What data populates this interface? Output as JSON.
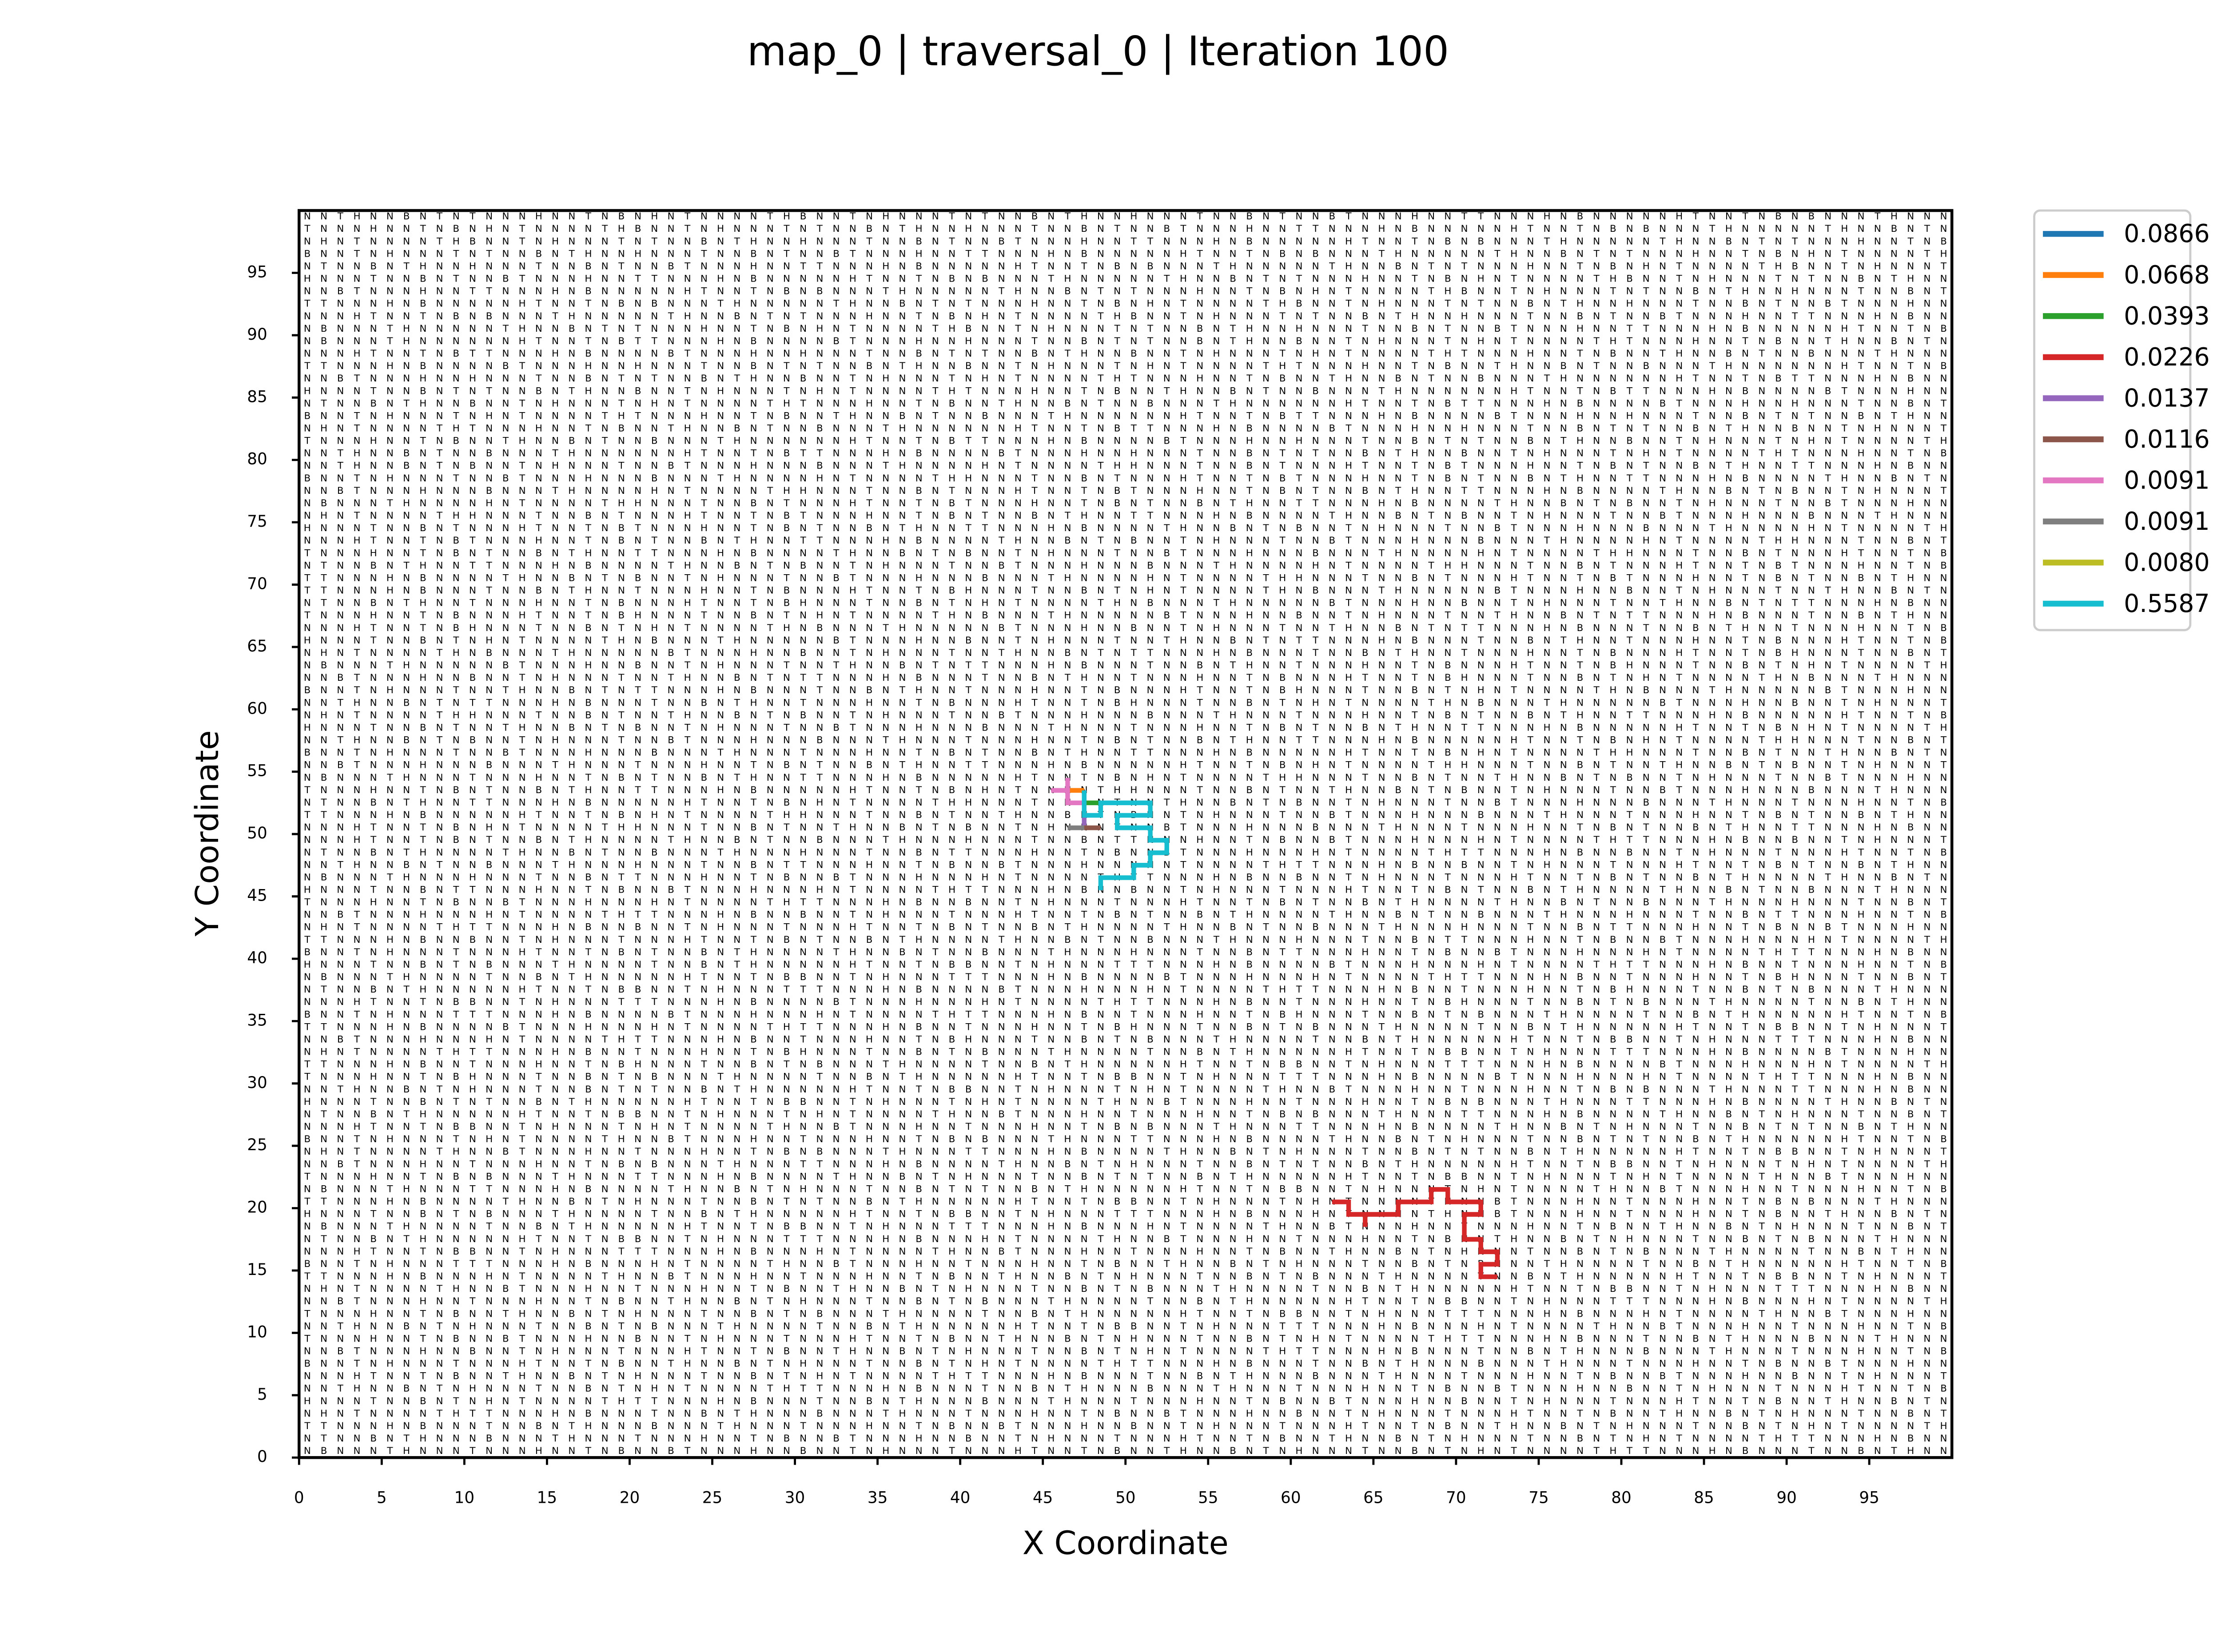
{
  "chart_data": {
    "type": "line",
    "title": "map_0 | traversal_0 | Iteration 100",
    "xlabel": "X Coordinate",
    "ylabel": "Y Coordinate",
    "xlim": [
      0,
      100
    ],
    "ylim": [
      0,
      100
    ],
    "xticks": [
      0,
      5,
      10,
      15,
      20,
      25,
      30,
      35,
      40,
      45,
      50,
      55,
      60,
      65,
      70,
      75,
      80,
      85,
      90,
      95
    ],
    "yticks": [
      0,
      5,
      10,
      15,
      20,
      25,
      30,
      35,
      40,
      45,
      50,
      55,
      60,
      65,
      70,
      75,
      80,
      85,
      90,
      95
    ],
    "legend": "outside-upper-right",
    "series": [
      {
        "name": "0.0866",
        "color": "#1f77b4",
        "x": [
          47.5,
          47.5
        ],
        "y": [
          53.5,
          52.5
        ]
      },
      {
        "name": "0.0668",
        "color": "#ff7f0e",
        "x": [
          46.5,
          47.5
        ],
        "y": [
          53.5,
          53.5
        ]
      },
      {
        "name": "0.0393",
        "color": "#2ca02c",
        "x": [
          47.5,
          48.5
        ],
        "y": [
          52.5,
          52.5
        ]
      },
      {
        "name": "0.0226",
        "color": "#d62728",
        "x": [
          62.5,
          63.5,
          63.5,
          64.5,
          64.5,
          64.5,
          65.5,
          66.5,
          66.5,
          67.5,
          68.5,
          68.5,
          69.5,
          69.5,
          70.5,
          71.5,
          71.5,
          70.5,
          70.5,
          70.5,
          71.5,
          71.5,
          72.5,
          72.5,
          71.5,
          71.5,
          72.5
        ],
        "y": [
          20.5,
          20.5,
          19.5,
          19.5,
          18.5,
          19.5,
          19.5,
          19.5,
          20.5,
          20.5,
          20.5,
          21.5,
          21.5,
          20.5,
          20.5,
          20.5,
          19.5,
          19.5,
          18.5,
          17.5,
          17.5,
          16.5,
          16.5,
          15.5,
          15.5,
          14.5,
          14.5
        ]
      },
      {
        "name": "0.0137",
        "color": "#9467bd",
        "x": [
          47.5,
          47.5
        ],
        "y": [
          51.5,
          50.5
        ]
      },
      {
        "name": "0.0116",
        "color": "#8c564b",
        "x": [
          47.5,
          48.5
        ],
        "y": [
          50.5,
          50.5
        ]
      },
      {
        "name": "0.0091",
        "color": "#e377c2",
        "x": [
          45.5,
          46.5,
          46.5,
          46.5,
          47.5
        ],
        "y": [
          53.5,
          53.5,
          54.5,
          52.5,
          52.5
        ]
      },
      {
        "name": "0.0091",
        "color": "#7f7f7f",
        "x": [
          46.5,
          47.5
        ],
        "y": [
          50.5,
          50.5
        ]
      },
      {
        "name": "0.0080",
        "color": "#bcbd22",
        "x": [
          47.5,
          47.5
        ],
        "y": [
          52.5,
          51.5
        ]
      },
      {
        "name": "0.5587",
        "color": "#17becf",
        "x": [
          47.5,
          47.5,
          48.5,
          48.5,
          49.5,
          50.5,
          51.5,
          51.5,
          50.5,
          49.5,
          49.5,
          50.5,
          51.5,
          51.5,
          52.5,
          52.5,
          51.5,
          51.5,
          50.5,
          50.5,
          49.5,
          48.5,
          48.5
        ],
        "y": [
          53.5,
          51.5,
          51.5,
          52.5,
          52.5,
          52.5,
          52.5,
          51.5,
          51.5,
          51.5,
          50.5,
          50.5,
          50.5,
          49.5,
          49.5,
          48.5,
          48.5,
          47.5,
          47.5,
          46.5,
          46.5,
          46.5,
          45.5
        ]
      }
    ],
    "cell_rows": [
      "NNTHNNBNTNTNNNHNNTNBNHNTNNNNTHBNNTNHNNNTNTNNBNTHNNHNNNTNNBNTNNBTNNNHNNTTNNNHNBNNNNNHTNNTNBNBNNNTHNNN",
      "TNNNHNNTNBNHNTNNNNTHBNNTNHNNNTNTNNBNTHNNHNNNTNNBNTNNBTNNNHNNTTNNNHNBNNNNNHTNNTNBNBNNNTHNNNNNTHNNBNTN",
      "NHNTNNNNTHBNNTNHNNNTNTNNBNTHNNHNNNTNNBNTNNBTNNNHNNTTNNNHNBNNNNNHTNNTNBNBNNNTHNNNNNTHNNBNTNTNNNHNNTNB",
      "BNNTNHNNNTNTNNBNTHNNHNNNTNNBNTNNBTNNNHNNTTNNNHNBNNNNNHTNNTNBNBNNNTHNNNNNTHNNBNTNTNNNHNNTNBNHNTNNNNTH",
      "NTNNBNTHNNHNNNTNNBNTNNBTNNNHNNTTNNNHNBNNNNNHTNNTNBNBNNNTHNNNNNTHNNBNTNTNNNHNNTNBNHNTNNNNTHBNNTNHNNNT",
      "HNNNTNNBNTNNBTNNNHNNTTNNNHNBNNNNNHTNNTNBNBNNNTHNNNNNTHNNBNTNTNNNHNNTNBNHNTNNNNTHBNNTNHNNNTNTNNBNTHNN",
      "NNBTNNNHNNTTNNNHNBNNNNNHTNNTNBNBNNNTHNNNNNTHNNBNTNTNNNHNNTNBNHNTNNNNTHBNNTNHNNNTNTNNBNTHNNHNNNTNNBNT",
      "TTNNNHNBNNNNNHTNNTNBNBNNNTHNNNNNTHNNBNTNTNNNHNNTNBNHNTNNNNTHBNNTNHNNNTNTNNBNTHNNHNNNTNNBNTNNBTNNNHNN",
      "NNNHTNNTNBNBNNNTHNNNNNTHNNBNTNTNNNHNNTNBNHNTNNNNTHBNNTNHNNNTNTNNBNTHNNHNNNTNNBNTNNBTNNNHNNTTNNNHNBNN",
      "NBNNNTHNNNNNTHNNBNTNTNNNHNNTNBNHNTNNNNTHBNNTNHNNNTNTNNBNTHNNHNNNTNNBNTNNBTNNNHNNTTNNNHNBNNNNNHTNNTNB",
      "NBNNNTHNNNNNNHTNNTNBTTNNNHNBNNNNBTNNNHNNHNNNTNNBNTNTNNBNTHNNBNNTNHNNNTNHNTNNNNTHTNNNHNNTNBNNTHNNBNTN",
      "NNNHTNNTNBTTNNNHNBNNNNBTNNNHNNHNNNTNNBNTNTNNBNTHNNBNNTNHNNNTNHNTNNNNTHTNNNHNNTNBNNTHNNBNTNNBNNNTHNNN",
      "TTNNNHNBNNNNBTNNNHNNHNNNTNNBNTNTNNBNTHNNBNNTNHNNNTNHNTNNNNTHTNNNHNNTNBNNTHNNBNTNNBNNNTHNNNNNNHTNNTNB",
      "NNBTNNNHNNHNNNTNNBNTNTNNBNTHNNBNNTNHNNNTNHNTNNNNTHTNNNHNNTNBNNTHNNBNTNNBNNNTHNNNNNNHTNNTNBTTNNNHNBNN",
      "HNNNTNNBNTNTNNBNTHNNBNNTNHNNNTNHNTNNNNTHTNNNHNNTNBNNTHNNBNTNNBNNNTHNNNNNNHTNNTNBTTNNNHNBNNNNBTNNNHNN",
      "NTNNBNTHNNBNNTNHNNNTNHNTNNNNTHTNNNHNNTNBNNTHNNBNTNNBNNNTHNNNNNNHTNNTNBTTNNNHNBNNNNBTNNNHNNHNNNTNNBNT",
      "BNNTNHNNNTNHNTNNNNTHTNNNHNNTNBNNTHNNBNTNNBNNNTHNNNNNNHTNNTNBTTNNNHNBNNNNBTNNNHNNHNNNTNNBNTNTNNBNTHNN",
      "NHNTNNNNTHTNNNHNNTNBNNTHNNBNTNNBNNNTHNNNNNNHTNNTNBTTNNNHNBNNNNBTNNNHNNHNNNTNNBNTNTNNBNTHNNBNNTNHNNNT",
      "TNNNHNNTNBNNTHNNBNTNNBNNNTHNNNNNNHTNNTNBTTNNNHNBNNNNBTNNNHNNHNNNTNNBNTNTNNBNTHNNBNNTNHNNNTNHNTNNNNTH",
      "NNTHNNBNTNNBNNNTHNNNNNNHTNNTNBTTNNNHNBNNNNBTNNNHNNHNNNTNNBNTNTNNBNTHNNBNNTNHNNNTNHNTNNNNTHTNNNHNNTNB",
      "NNTHNNBNTNBNNTNHNNNTNNBTNNNHNNNBNNNTHNNNNHNTNNNNTHHNNNTNNBNTNNNHTNNTNBTNNNHNNTNBNTNNBNTHNNTTNNNHNBNN",
      "BNNTNHNNNTNNBTNNNHNNNBNNNTHNNNNHNTNNNNTHHNNNTNNBNTNNNHTNNTNBTNNNHNNTNBNTNNBNTHNNTTNNNHNBNNNNTHNNBNTN",
      "NNBTNNNHNNNBNNNTHNNNNHNTNNNNTHHNNNTNNBNTNNNHTNNTNBTNNNHNNTNBNTNNBNTHNNTTNNNHNBNNNNTHNNBNTNBNNTNHNNNT",
      "NBNNNTHNNNNHNTNNNNTHHNNNTNNBNTNNNHTNNTNBTNNNHNNTNBNTNNBNTHNNTTNNNHNBNNNNTHNNBNTNBNNTNHNNNTNNBTNNNHNN",
      "NHNTNNNNTHHNNNTNNBNTNNNHTNNTNBTNNNHNNTNBNTNNBNTHNNTTNNNHNBNNNNTHNNBNTNBNNTNHNNNTNNBTNNNHNNNBNNNTHNNN",
      "HNNNTNNBNTNNNHTNNTNBTNNNHNNTNBNTNNBNTHNNTTNNNHNBNNNNTHNNBNTNBNNTNHNNNTNNBTNNNHNNNBNNNTHNNNNHNTNNNNTH",
      "NNNHTNNTNBTNNNHNNTNBNTNNBNTHNNTTNNNHNBNNNNTHNNBNTNBNNTNHNNNTNNBTNNNHNNNBNNNTHNNNNHNTNNNNTHHNNNTNNBNT",
      "TNNNHNNTNBNTNNBNTHNNTTNNNHNBNNNNTHNNBNTNBNNTNHNNNTNNBTNNNHNNNBNNNTHNNNNHNTNNNNTHHNNNTNNBNTNNNHTNNTNB",
      "NTNNBNTHNNTTNNNHNBNNNNTHNNBNTNBNNTNHNNNTNNBTNNNHNNNBNNNTHNNNNHNTNNNNTHHNNNTNNBNTNNNHTNNTNBTNNNHNNTNB",
      "TTNNNHNBNNNNTHNNBNTNBNNTNHNNNTNNBTNNNHNNNBNNNTHNNNNHNTNNNNTHHNNNTNNBNTNNNHTNNTNBTNNNHNNTNBNTNNBNTHNN",
      "TTNNNHNBNNNTNNBNTHNNTNNNHNNTNBNNNHTNNTNBHNNNTNNBNTNHNTNNNNTHNBNNNTHNNNNNBTNNNHNNBNNTNHNNNTNNTHNNBNTN",
      "NTNNBNTHNNTNNNHNNTNBNNNHTNNTNBHNNNTNNBNTNHNTNNNNTHNBNNNTHNNNNNBTNNNHNNBNNTNHNNNTNNTHNNBNTNTTNNNHNBNN",
      "TNNNHNNTNBNNNHTNNTNBHNNNTNNBNTNHNTNNNNTHNBNNNTHNNNNNBTNNNHNNBNNTNHNNNTNNTHNNBNTNTTNNNHNBNNNTNNBNTHNN",
      "NNNHTNNTNBHNNNTNNBNTNHNTNNNNTHNBNNNTHNNNNNBTNNNHNNBNNTNHNNNTNNTHNNBNTNTTNNNHNBNNNTNNBNTHNNTNNNHNNTNB",
      "HNNNTNNBNTNHNTNNNNTHNBNNNTHNNNNNBTNNNHNNBNNTNHNNNTNNTHNNBNTNTTNNNHNBNNNTNNBNTHNNTNNNHNNTNBNNNHTNNTNB",
      "NHNTNNNNTHNBNNNTHNNNNNBTNNNHNNBNNTNHNNNTNNTHNNBNTNTTNNNHNBNNNTNNBNTHNNTNNNHNNTNBNNNHTNNTNBHNNNTNNBNT",
      "NBNNNTHNNNNNBTNNNHNNBNNTNHNNNTNNTHNNBNTNTTNNNHNBNNNTNNBNTHNNTNNNHNNTNBNNNHTNNTNBHNNNTNNBNTNHNTNNNNTH",
      "NNBTNNNHNNBNNTNHNNNTNNTHNNBNTNTTNNNHNBNNNTNNBNTHNNTNNNHNNTNBNNNHTNNTNBHNNNTNNBNTNHNTNNNNTHNBNNNTHNNN",
      "BNNTNHNNNTNNTHNNBNTNTTNNNHNBNNNTNNBNTHNNTNNNHNNTNBNNNHTNNTNBHNNNTNNBNTNHNTNNNNTHNBNNNTHNNNNNBTNNNHNN",
      "NNTHNNBNTNTTNNNHNBNNNTNNBNTHNNTNNNHNNTNBNNNHTNNTNBHNNNTNNBNTNHNTNNNNTHNBNNNTHNNNNNBTNNNHNNBNNTNHNNNT",
      "NHNTNNNNTHHNNNTNNBNTNNTHNNBNTNBNNTNHNNNTNNBTNNNHNNNBNNNTHNNNTNNNHNNTNBNTNNBNTHNNTTNNNHNBNNNNNHTNNTNB",
      "HNNNTNNBNTNNTHNNBNTNBNNTNHNNNTNNBTNNNHNNNBNNNTHNNNTNNNHNNTNBNTNNBNTHNNTTNNNHNBNNNNNHTNNTNBNHNTNNNNTH",
      "NNTHNNBNTNBNNTNHNNNTNNBTNNNHNNNBNNNTHNNNTNNNHNNTNBNTNNBNTHNNTTNNNHNBNNNNNHTNNTNBNHNTNNNNTHHNNNTNNBNT",
      "BNNTNHNNNTNNBTNNNHNNNBNNNTHNNNTNNNHNNTNBNTNNBNTHNNTTNNNHNBNNNNNHTNNTNBNHNTNNNNTHHNNNTNNBNTNNTHNNBNTN",
      "NNBTNNNHNNNBNNNTHNNNTNNNHNNTNBNTNNBNTHNNTTNNNHNBNNNNNHTNNTNBNHNTNNNNTHHNNNTNNBNTNNTHNNBNTNBNNTNHNNNT",
      "NBNNNTHNNNTNNNHNNTNBNTNNBNTHNNTTNNNHNBNNNNNHTNNTNBNHNTNNNNTHHNNNTNNBNTNNTHNNBNTNBNNTNHNNNTNNBTNNNHNN",
      "TNNNHNNTNBNTNNBNTHNNTTNNNHNBNNNNNHTNNTNBNHNTNNNNTHHNNNTNNBNTNNTHNNBNTNBNNTNHNNNTNNBTNNNHNNNBNNNTHNNN",
      "NTNNBNTHNNTTNNNHNBNNNNNHTNNTNBNHNTNNNNTHHNNNTNNBNTNNTHNNBNTNBNNTNHNNNTNNBTNNNHNNNBNNNTHNNNTNNNHNNTNB",
      "TTNNNHNBNNNNNHTNNTNBNHNTNNNNTHHNNNTNNBNTNNTHNNBNTNBNNTNHNNNTNNBTNNNHNNNBNNNTHNNNTNNNHNNTNBNTNNBNTHNN",
      "NNNHTNNTNBNHNTNNNNTHHNNNTNNBNTNNTHNNBNTNBNNTNHNNNTNNBTNNNHNNNBNNNTHNNNTNNNHNNTNBNTNNBNTHNNTTNNNHNBNN",
      "NNNHTNNTNBNTNNBNTHNNNNTHNNBNTNNBNNNTHNNNHNNNTNNBNTTNNNHNNTNBNNBTNNNHNNNHNTNNNNTHTTNNNHNBNNBNNTNHNNNT",
      "NTNNBNTHNNNNTHNNBNTNNBNNNTHNNNHNNNTNNBNTTNNNHNNTNBNNBTNNNHNNNHNTNNNNTHTTNNNHNBNNBNNTNHNNNTNNNHTNNTNB",
      "NNTHNNBNTNNBNNNTHNNNHNNNTNNBNTTNNNHNNTNBNNBTNNNHNNNHNTNNNNTHTTNNNHNBNNBNNTNHNNNTNNNHTNNTNBNTNNBNTHNN",
      "NBNNNTHNNNHNNNTNNBNTTNNNHNNTNBNNBTNNNHNNNHNTNNNNTHTTNNNHNBNNBNNTNHNNNTNNNHTNNTNBNTNNBNTHNNNNTHNNBNTN",
      "HNNNTNNBNTTNNNHNNTNBNNBTNNNHNNNHNTNNNNTHTTNNNHNBNNBNNTNHNNNTNNNHTNNTNBNTNNBNTHNNNNTHNNBNTNNBNNNTHNNN",
      "TNNNHNNTNBNNBTNNNHNNNHNTNNNNTHTTNNNHNBNNBNNTNHNNNTNNNHTNNTNBNTNNBNTHNNNNTHNNBNTNNBNNNTHNNNHNNNTNNBNT",
      "NNBTNNNHNNNHNTNNNNTHTTNNNHNBNNBNNTNHNNNTNNNHTNNTNBNTNNBNTHNNNNTHNNBNTNNBNNNTHNNNHNNNTNNBNTTNNNHNNTNB",
      "NHNTNNNNTHTTNNNHNBNNBNNTNHNNNTNNNHTNNTNBNTNNBNTHNNNNTHNNBNTNNBNNNTHNNNHNNNTNNBNTTNNNHNNTNBNNBTNNNHNN",
      "TTNNNHNBNNBNNTNHNNNTNNNHTNNTNBNTNNBNTHNNNNTHNNBNTNNBNNNTHNNNHNNNTNNBNTTNNNHNNTNBNNBTNNNHNNNHNTNNNNTH",
      "BNNTNHNNNTNNNHTNNTNBNTNNBNTHNNNNTHNNBNTNNBNNNTHNNNHNNNTNNBNTTNNNHNNTNBNNBTNNNHNNNHNTNNNNTHTTNNNHNBNN",
      "HNNNTNNBNTNBNNNTHNNNNTNNBNTHNNNNNHTNNTNBBNNTNHNNNTTTNNNHNBNNNNBTNNNHNNNHNTNNNNTHTTNNNHNBNNTNNNHNNTNB",
      "NBNNNTHNNNNTNNBNTHNNNNNHTNNTNBBNNTNHNNNTTTNNNHNBNNNNBTNNNHNNNHNTNNNNTHTTNNNHNBNNTNNNHNNTNBHNNNTNNBNT",
      "NTNNBNTHNNNNNHTNNTNBBNNTNHNNNTTTNNNHNBNNNNBTNNNHNNNHNTNNNNTHTTNNNHNBNNTNNNHNNTNBHNNNTNNBNTNBNNNTHNNN",
      "NNNHTNNTNBBNNTNHNNNTTTNNNHNBNNNNBTNNNHNNNHNTNNNNTHTTNNNHNBNNTNNNHNNTNBHNNNTNNBNTNBNNNTHNNNNTNNBNTHNN",
      "BNNTNHNNNTTTNNNHNBNNNNBTNNNHNNNHNTNNNNTHTTNNNHNBNNTNNNHNNTNBHNNNTNNBNTNBNNNTHNNNNTNNBNTHNNNNNHTNNTNB",
      "TTNNNHNBNNNNBTNNNHNNNHNTNNNNTHTTNNNHNBNNTNNNHNNTNBHNNNTNNBNTNBNNNTHNNNNTNNBNTHNNNNNHTNNTNBBNNTNHNNNT",
      "NNBTNNNHNNNHNTNNNNTHTTNNNHNBNNTNNNHNNTNBHNNNTNNBNTNBNNNTHNNNNTNNBNTHNNNNNHTNNTNBBNNTNHNNNTTTNNNHNBNN",
      "NHNTNNNNTHTTNNNHNBNNTNNNHNNTNBHNNNTNNBNTNBNNNTHNNNNTNNBNTHNNNNNHTNNTNBBNNTNHNNNTTTNNNHNBNNNNBTNNNHNN",
      "TTNNNHNBNNTNNNHNNTNBHNNNTNNBNTNBNNNTHNNNNTNNBNTHNNNNNHTNNTNBBNNTNHNNNTTTNNNHNBNNNNBTNNNHNNNHNTNNNNTH",
      "TNNNHNNTNBHNNNTNNBNTNBNNNTHNNNNTNNBNTHNNNNNHTNNTNBBNNTNHNNNTTTNNNHNBNNNNBTNNNHNNNHNTNNNNTHTTNNNHNBNN",
      "NNTHNNBNTNHNNNTNNBNTNTNNBNTHNNNNNHTNNTNBBNNTNHNNNTNHNTNNNNTHNNBTNNNHNNTNNNHNNTNBNBNNNTHNNNTTNNNHNBNN",
      "HNNNTNNBNTNTNNBNTHNNNNNHTNNTNBBNNTNHNNNTNHNTNNNNTHNNBTNNNHNNTNNNHNNTNBNBNNNTHNNNTTNNNHNBNNNNTHNNBNTN",
      "NTNNBNTHNNNNNHTNNTNBBNNTNHNNNTNHNTNNNNTHNNBTNNNHNNTNNNHNNTNBNBNNNTHNNNTTNNNHNBNNNNTHNNBNTNHNNNTNNBNT",
      "NNNHTNNTNBBNNTNHNNNTNHNTNNNNTHNNBTNNNHNNTNNNHNNTNBNBNNNTHNNNTTNNNHNBNNNNTHNNBNTNHNNNTNNBNTNTNNBNTHNN",
      "BNNTNHNNNTNHNTNNNNTHNNBTNNNHNNTNNNHNNTNBNBNNNTHNNNTTNNNHNBNNNNTHNNBNTNHNNNTNNBNTNTNNBNTHNNNNNHTNNTNB",
      "NHNTNNNNTHNNBTNNNHNNTNNNHNNTNBNBNNNTHNNNTTNNNHNBNNNNTHNNBNTNHNNNTNNBNTNTNNBNTHNNNNNHTNNTNBBNNTNHNNNT",
      "NNBTNNNHNNTNNNHNNTNBNBNNNTHNNNTTNNNHNBNNNNTHNNBNTNHNNNTNNBNTNTNNBNTHNNNNNHTNNTNBBNNTNHNNNTNHNTNNNNTH",
      "TNNNHNNTNBNBNNNTHNNNTTNNNHNBNNNNTHNNBNTNHNNNTNNBNTNTNNBNTHNNNNNHTNNTNBBNNTNHNNNTNHNTNNNNTHNNBTNNNHNN",
      "NBNNNTHNNNTTNNNHNBNNNNTHNNBNTNHNNNTNNBNTNTNNBNTHNNNNNHTNNTNBBNNTNHNNNTNHNTNNNNTHNNBTNNNHNNTNNNHNNTNB",
      "TTNNNHNBNNNNTHNNBNTNHNNNTNNBNTNTNNBNTHNNNNNHTNNTNBBNNTNHNNNTNHNTNNNNTHNNBTNNNHNNTNNNHNNTNBNBNNNTHNNN",
      "HNNNTNNBNTNBNNNTHNNNNTNNBNTHNNNNNHTNNTNBBNNTNHNNNTTTNNNHNBNNNHNTNNNNTHNNBTNNNHNNTNNNHNNTNBNNTHNNBNTN",
      "NBNNNTHNNNNTNNBNTHNNNNNHTNNTNBBNNTNHNNNTTTNNNHNBNNNHNTNNNNTHNNBTNNNHNNTNNNHNNTNBNNTHNNBNTNHNNNTNNBNT",
      "NTNNBNTHNNNNNHTNNTNBBNNTNHNNNTTTNNNHNBNNNHNTNNNNTHNNBTNNNHNNTNNNHNNTNBNNTHNNBNTNHNNNTNNBNTNBNNNTHNNN",
      "NNNHTNNTNBBNNTNHNNNTTTNNNHNBNNNHNTNNNNTHNNBTNNNHNNTNNNHNNTNBNNTHNNBNTNHNNNTNNBNTNBNNNTHNNNNTNNBNTHNN",
      "BNNTNHNNNTTTNNNHNBNNNHNTNNNNTHNNBTNNNHNNTNNNHNNTNBNNTHNNBNTNHNNNTNNBNTNBNNNTHNNNNTNNBNTHNNNNNHTNNTNB",
      "TTNNNHNBNNNHNTNNNNTHNNBTNNNHNNTNNNHNNTNBNNTHNNBNTNHNNNTNNBNTNBNNNTHNNNNTNNBNTHNNNNNHTNNTNBBNNTNHNNNT",
      "NHNTNNNNTHNNBTNNNHNNTNNNHNNTNBNNTHNNBNTNHNNNTNNBNTNBNNNTHNNNNTNNBNTHNNNNNHTNNTNBBNNTNHNNNTTTNNNHNBNN",
      "NNBTNNNHNNTNNNHNNTNBNNTHNNBNTNHNNNTNNBNTNBNNNTHNNNNTNNBNTHNNNNNHTNNTNBBNNTNHNNNTTTNNNHNBNNNHNTNNNNTH",
      "TNNNHNNTNBNNTHNNBNTNHNNNTNNBNTNBNNNTHNNNNTNNBNTHNNNNNHTNNTNBBNNTNHNNNTTTNNNHNBNNNHNTNNNNTHNNBTNNNHNN",
      "NNTHNNBNTNHNNNTNNBNTNBNNNTHNNNNTNNBNTHNNNNNHTNNTNBBNNTNHNNNTTTNNNHNBNNNHNTNNNNTHNNBTNNNHNNTNNNHNNTNB",
      "TNNNHNNTNBNNBTNNNHNNBNNTNHNNNTNNNHTNNTNBNNTHNNBNTNHNNNTNNBNTNHNTNNNNTHTTNNNHNBNNNTNNBNTHNNNBNNNTHNNN",
      "NNBTNNNHNNBNNTNHNNNTNNNHTNNTNBNNTHNNBNTNHNNNTNNBNTNHNTNNNNTHTTNNNHNBNNNTNNBNTHNNNBNNNTHNNNTNNNHNNTNB",
      "BNNTNHNNNTNNNHTNNTNBNNTHNNBNTNHNNNTNNBNTNHNTNNNNTHTTNNNHNBNNNTNNBNTHNNNBNNNTHNNNTNNNHNNTNBNNBTNNNHNN",
      "NNNHTNNTNBNNTHNNBNTNHNNNTNNBNTNHNTNNNNTHTTNNNHNBNNNTNNBNTHNNNBNNNTHNNNTNNNHNNTNBNNBTNNNHNNBNNTNHNNNT",
      "NNTHNNBNTNHNNNTNNBNTNHNTNNNNTHTTNNNHNBNNNTNNBNTHNNNBNNNTHNNNTNNNHNNTNBNNBTNNNHNNBNNTNHNNNTNNNHTNNTNB",
      "HNNNTNNBNTNHNTNNNNTHTTNNNHNBNNNTNNBNTHNNNBNNNTHNNNTNNNHNNTNBNNBTNNNHNNBNNTNHNNNTNNNHTNNTNBNNTHNNBNTN",
      "NHNTNNNNTHTTNNNHNBNNNTNNBNTHNNNBNNNTHNNNTNNNHNNTNBNNBTNNNHNNBNNTNHNNNTNNNHTNNTNBNNTHNNBNTNHNNNTNNBNT",
      "TTNNNHNBNNNTNNBNTHNNNBNNNTHNNNTNNNHNNTNBNNBTNNNHNNBNNTNHNNNTNNNHTNNTNBNNTHNNBNTNHNNNTNNBNTNHNTNNNNTH",
      "NTNNBNTHNNNBNNNTHNNNTNNNHNNTNBNNBTNNNHNNBNNTNHNNNTNNNHTNNTNBNNTHNNBNTNHNNNTNNBNTNHNTNNNNTHTTNNNHNBNN",
      "NBNNNTHNNNTNNNHNNTNBNNBTNNNHNNBNNTNHNNNTNNNHTNNTNBNNTHNNBNTNHNNNTNNBNTNHNTNNNNTHTTNNNHNBNNNTNNBNTHNN"
    ]
  }
}
